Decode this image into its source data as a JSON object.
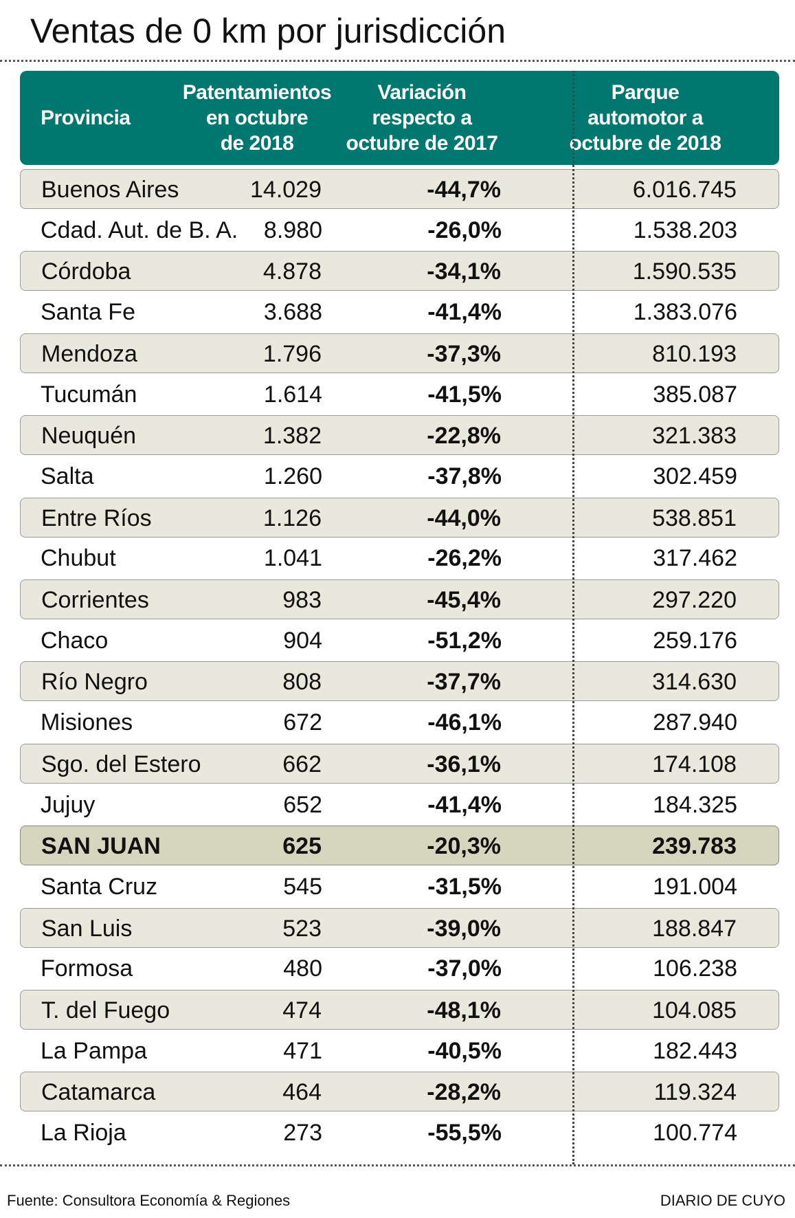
{
  "header": {
    "title": "Ventas de 0 km por jurisdicción"
  },
  "table": {
    "headers": [
      [
        "Provincia"
      ],
      [
        "Patentamientos",
        "en octubre",
        "de 2018"
      ],
      [
        "Variación",
        "respecto a",
        "octubre de 2017"
      ],
      [
        "Parque",
        "automotor a",
        "octubre de 2018"
      ]
    ],
    "highlighted_row": 16,
    "rows": [
      [
        "Buenos Aires",
        "14.029",
        "-44,7%",
        "6.016.745"
      ],
      [
        "Cdad. Aut. de B. A.",
        "8.980",
        "-26,0%",
        "1.538.203"
      ],
      [
        "Córdoba",
        "4.878",
        "-34,1%",
        "1.590.535"
      ],
      [
        "Santa Fe",
        "3.688",
        "-41,4%",
        "1.383.076"
      ],
      [
        "Mendoza",
        "1.796",
        "-37,3%",
        "810.193"
      ],
      [
        "Tucumán",
        "1.614",
        "-41,5%",
        "385.087"
      ],
      [
        "Neuquén",
        "1.382",
        "-22,8%",
        "321.383"
      ],
      [
        "Salta",
        "1.260",
        "-37,8%",
        "302.459"
      ],
      [
        "Entre Ríos",
        "1.126",
        "-44,0%",
        "538.851"
      ],
      [
        "Chubut",
        "1.041",
        "-26,2%",
        "317.462"
      ],
      [
        "Corrientes",
        "983",
        "-45,4%",
        "297.220"
      ],
      [
        "Chaco",
        "904",
        "-51,2%",
        "259.176"
      ],
      [
        "Río Negro",
        "808",
        "-37,7%",
        "314.630"
      ],
      [
        "Misiones",
        "672",
        "-46,1%",
        "287.940"
      ],
      [
        "Sgo. del Estero",
        "662",
        "-36,1%",
        "174.108"
      ],
      [
        "Jujuy",
        "652",
        "-41,4%",
        "184.325"
      ],
      [
        "SAN JUAN",
        "625",
        "-20,3%",
        "239.783"
      ],
      [
        "Santa Cruz",
        "545",
        "-31,5%",
        "191.004"
      ],
      [
        "San Luis",
        "523",
        "-39,0%",
        "188.847"
      ],
      [
        "Formosa",
        "480",
        "-37,0%",
        "106.238"
      ],
      [
        "T. del Fuego",
        "474",
        "-48,1%",
        "104.085"
      ],
      [
        "La Pampa",
        "471",
        "-40,5%",
        "182.443"
      ],
      [
        "Catamarca",
        "464",
        "-28,2%",
        "119.324"
      ],
      [
        "La Rioja",
        "273",
        "-55,5%",
        "100.774"
      ]
    ]
  },
  "footer": {
    "source": "Fuente: Consultora Economía & Regiones",
    "credit": "DIARIO DE CUYO"
  }
}
